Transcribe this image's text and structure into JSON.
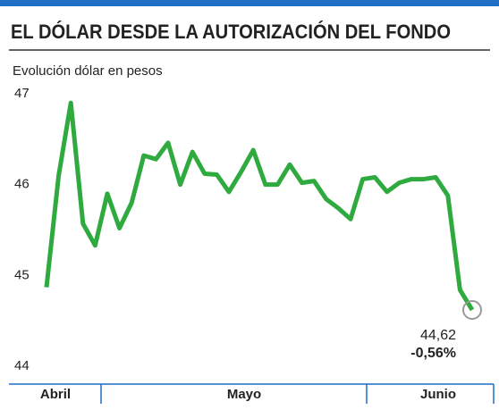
{
  "chart_data": {
    "type": "line",
    "title": "EL DÓLAR DESDE LA AUTORIZACIÓN DEL FONDO",
    "subtitle": "Evolución dólar en pesos",
    "months": [
      "Abril",
      "Mayo",
      "Junio"
    ],
    "series": [
      {
        "name": null,
        "color": "#2eaa3f",
        "values": [
          44.87,
          46.1,
          46.9,
          45.57,
          45.33,
          45.9,
          45.52,
          45.8,
          46.32,
          46.28,
          46.46,
          46.0,
          46.36,
          46.12,
          46.11,
          45.92,
          46.14,
          46.38,
          46.0,
          46.0,
          46.22,
          46.02,
          46.04,
          45.84,
          45.74,
          45.62,
          46.06,
          46.08,
          45.92,
          46.02,
          46.06,
          46.06,
          46.08,
          45.88,
          44.84,
          44.62
        ],
        "value_labels": {
          "35": "44,62"
        }
      }
    ],
    "annotation": "-0,56%",
    "ylim": [
      44,
      47
    ],
    "yticks": [
      44,
      45,
      46,
      47
    ]
  }
}
